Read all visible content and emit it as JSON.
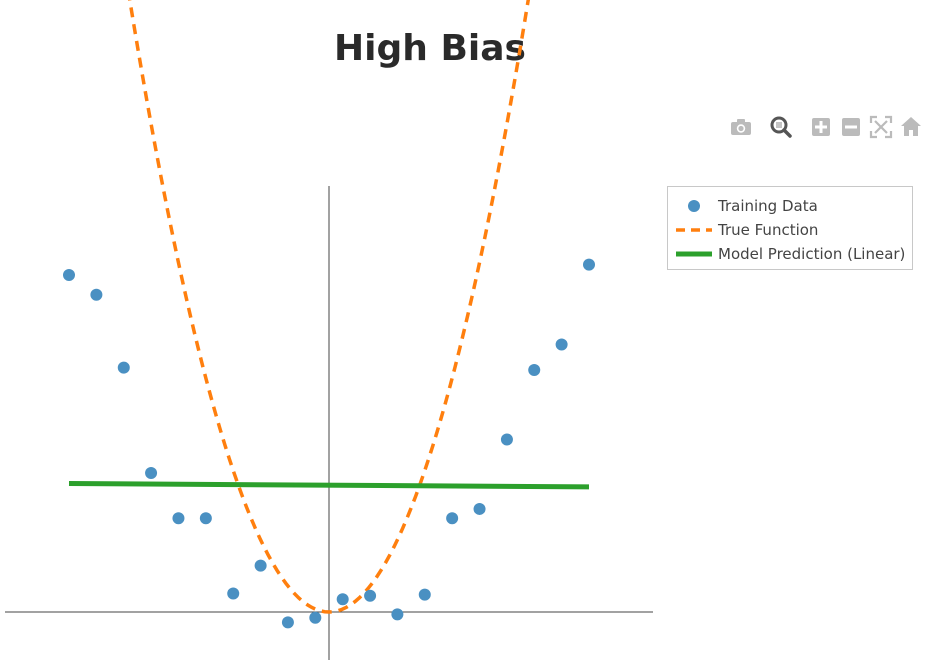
{
  "chart_data": {
    "type": "scatter",
    "title": "High Bias",
    "xlabel": "",
    "ylabel": "",
    "xlim": [
      -3.0,
      3.0
    ],
    "ylim": [
      -0.4,
      3.6
    ],
    "grid": false,
    "zero_lines": true,
    "legend_position": "top-right",
    "series": [
      {
        "name": "Training Data",
        "kind": "markers",
        "color": "#4a90c2",
        "x": [
          -3.0,
          -2.684,
          -2.368,
          -2.053,
          -1.737,
          -1.421,
          -1.105,
          -0.789,
          -0.474,
          -0.158,
          0.158,
          0.474,
          0.789,
          1.105,
          1.421,
          1.737,
          2.053,
          2.368,
          2.684,
          3.0
        ],
        "y": [
          2.91,
          2.74,
          2.11,
          1.2,
          0.81,
          0.81,
          0.16,
          0.4,
          -0.09,
          -0.05,
          0.11,
          0.14,
          -0.02,
          0.15,
          0.81,
          0.89,
          1.49,
          2.09,
          2.31,
          3.0
        ]
      },
      {
        "name": "True Function",
        "kind": "dashed-line",
        "color": "#ff7f0e",
        "function": "x^2",
        "x_range": [
          -3.0,
          3.0
        ]
      },
      {
        "name": "Model Prediction (Linear)",
        "kind": "line",
        "color": "#2ca02c",
        "x": [
          -3.0,
          3.0
        ],
        "y": [
          1.11,
          1.08
        ]
      }
    ]
  },
  "modebar": {
    "camera": "camera-icon",
    "zoom": "zoom-icon",
    "zoom_in": "zoom-in-icon",
    "zoom_out": "zoom-out-icon",
    "autoscale": "autoscale-icon",
    "reset": "home-icon"
  },
  "colors": {
    "title": "#2a2a2a",
    "axis": "#444444",
    "modebar_icon": "#bbbbbb",
    "modebar_active": "#555555"
  }
}
